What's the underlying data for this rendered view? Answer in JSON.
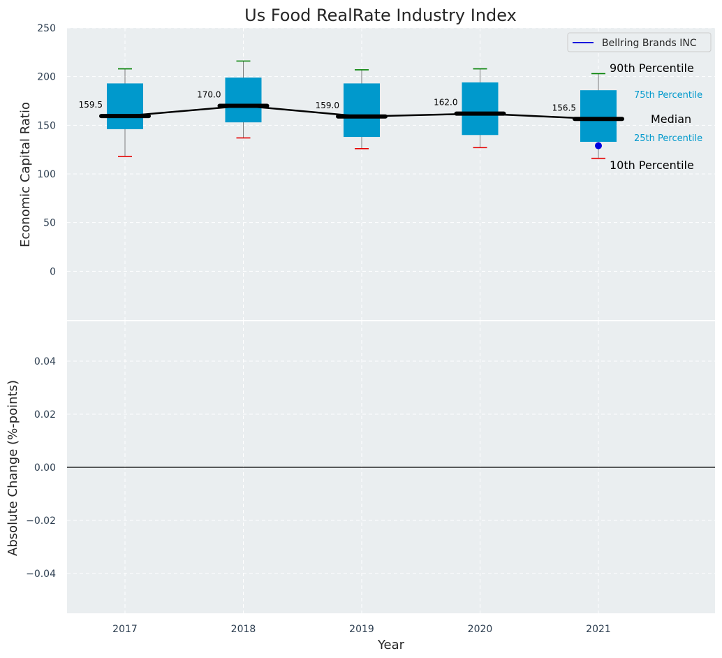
{
  "title": "Us Food RealRate Industry Index",
  "colors": {
    "background": "#eaeef0",
    "box": "#0099cc",
    "median": "#000000",
    "whisker_high": "#008000",
    "whisker_low": "#e60000",
    "company": "#0000dd",
    "percentile_label_small": "#0099cc"
  },
  "legend": {
    "label": "Bellring Brands INC",
    "placement": "top-right"
  },
  "annotations": {
    "p90": "90th Percentile",
    "p75": "75th Percentile",
    "median": "Median",
    "p25": "25th Percentile",
    "p10": "10th Percentile"
  },
  "chart_data": [
    {
      "type": "box",
      "panel": "top",
      "title": "Us Food RealRate Industry Index",
      "xlabel": "",
      "ylabel": "Economic Capital Ratio",
      "categories": [
        "2017",
        "2018",
        "2019",
        "2020",
        "2021"
      ],
      "ylim": [
        -50,
        250
      ],
      "yticks": [
        0,
        50,
        100,
        150,
        200,
        250
      ],
      "grid": true,
      "p10": [
        118,
        137,
        126,
        127,
        116
      ],
      "p25": [
        146,
        153,
        138,
        140,
        133
      ],
      "median": [
        159.5,
        170.0,
        159.0,
        162.0,
        156.5
      ],
      "p75": [
        193,
        199,
        193,
        194,
        186
      ],
      "p90": [
        208,
        216,
        207,
        208,
        203
      ],
      "median_labels": [
        "159.5",
        "170.0",
        "159.0",
        "162.0",
        "156.5"
      ],
      "series": [
        {
          "name": "Bellring Brands INC",
          "x": [
            "2021"
          ],
          "values": [
            129
          ]
        }
      ]
    },
    {
      "type": "line",
      "panel": "bottom",
      "xlabel": "Year",
      "ylabel": "Absolute Change (%-points)",
      "categories": [
        "2017",
        "2018",
        "2019",
        "2020",
        "2021"
      ],
      "ylim": [
        -0.055,
        0.055
      ],
      "yticks": [
        "0.04",
        "0.02",
        "0.00",
        "−0.02",
        "−0.04"
      ],
      "ytick_values": [
        0.04,
        0.02,
        0.0,
        -0.02,
        -0.04
      ],
      "reference_line": 0,
      "grid": true,
      "series": []
    }
  ]
}
